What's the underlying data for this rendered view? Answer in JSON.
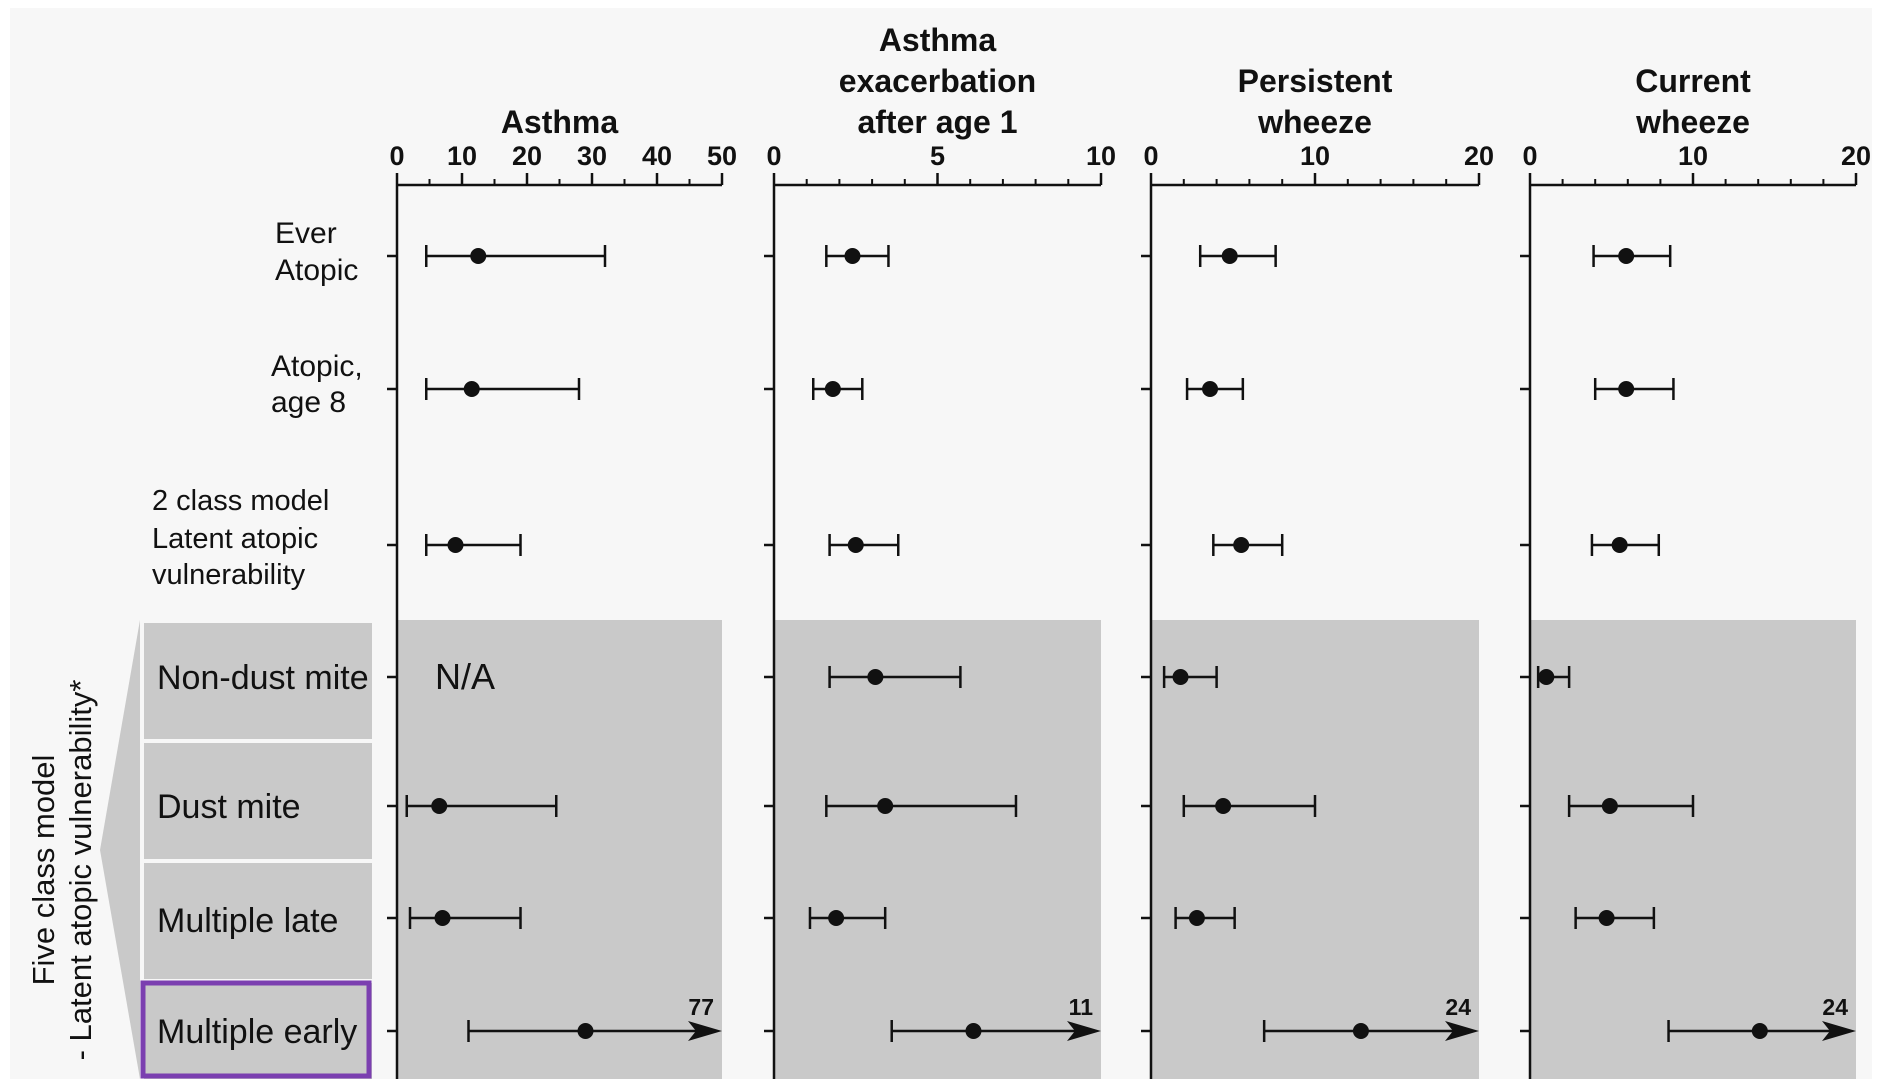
{
  "chart_data": {
    "type": "forest",
    "group_label": [
      "Five class model",
      "- Latent atopic vulnerability*"
    ],
    "rows": [
      {
        "id": "ever-atopic",
        "label_lines": [
          "Ever",
          "Atopic"
        ],
        "shaded": false
      },
      {
        "id": "atopic-age-8",
        "label_lines": [
          "Atopic,",
          "age 8"
        ],
        "shaded": false
      },
      {
        "id": "two-class",
        "label_lines": [
          "2 class model",
          "Latent atopic",
          "vulnerability"
        ],
        "shaded": false
      },
      {
        "id": "non-dust-mite",
        "label_lines": [
          "Non-dust mite"
        ],
        "shaded": true
      },
      {
        "id": "dust-mite",
        "label_lines": [
          "Dust mite"
        ],
        "shaded": true
      },
      {
        "id": "multiple-late",
        "label_lines": [
          "Multiple late"
        ],
        "shaded": true
      },
      {
        "id": "multiple-early",
        "label_lines": [
          "Multiple early"
        ],
        "shaded": true,
        "highlighted": true
      }
    ],
    "panels": [
      {
        "title_lines": [
          "Asthma"
        ],
        "axis_min": 0,
        "axis_max": 50,
        "major_ticks": [
          0,
          10,
          20,
          30,
          40,
          50
        ],
        "minor_ticks": [
          5,
          15,
          25,
          35,
          45
        ],
        "estimates": [
          {
            "est": 12.5,
            "lo": 4.5,
            "hi": 32
          },
          {
            "est": 11.5,
            "lo": 4.5,
            "hi": 28
          },
          {
            "est": 9,
            "lo": 4.5,
            "hi": 19
          },
          {
            "na": true,
            "text": "N/A"
          },
          {
            "est": 6.5,
            "lo": 1.5,
            "hi": 24.5
          },
          {
            "est": 7,
            "lo": 2,
            "hi": 19
          },
          {
            "est": 29,
            "lo": 11,
            "hi": 77,
            "truncated": true,
            "hi_label": "77"
          }
        ]
      },
      {
        "title_lines": [
          "Asthma",
          "exacerbation",
          "after age 1"
        ],
        "axis_min": 0,
        "axis_max": 10,
        "major_ticks": [
          0,
          5,
          10
        ],
        "minor_ticks": [
          1,
          2,
          3,
          4,
          6,
          7,
          8,
          9
        ],
        "estimates": [
          {
            "est": 2.4,
            "lo": 1.6,
            "hi": 3.5
          },
          {
            "est": 1.8,
            "lo": 1.2,
            "hi": 2.7
          },
          {
            "est": 2.5,
            "lo": 1.7,
            "hi": 3.8
          },
          {
            "est": 3.1,
            "lo": 1.7,
            "hi": 5.7
          },
          {
            "est": 3.4,
            "lo": 1.6,
            "hi": 7.4
          },
          {
            "est": 1.9,
            "lo": 1.1,
            "hi": 3.4
          },
          {
            "est": 6.1,
            "lo": 3.6,
            "hi": 11,
            "truncated": true,
            "hi_label": "11"
          }
        ]
      },
      {
        "title_lines": [
          "Persistent",
          "wheeze"
        ],
        "axis_min": 0,
        "axis_max": 20,
        "major_ticks": [
          0,
          10,
          20
        ],
        "minor_ticks": [
          2,
          4,
          6,
          8,
          12,
          14,
          16,
          18
        ],
        "estimates": [
          {
            "est": 4.8,
            "lo": 3,
            "hi": 7.6
          },
          {
            "est": 3.6,
            "lo": 2.2,
            "hi": 5.6
          },
          {
            "est": 5.5,
            "lo": 3.8,
            "hi": 8
          },
          {
            "est": 1.8,
            "lo": 0.8,
            "hi": 4
          },
          {
            "est": 4.4,
            "lo": 2,
            "hi": 10
          },
          {
            "est": 2.8,
            "lo": 1.5,
            "hi": 5.1
          },
          {
            "est": 12.8,
            "lo": 6.9,
            "hi": 24,
            "truncated": true,
            "hi_label": "24"
          }
        ]
      },
      {
        "title_lines": [
          "Current",
          "wheeze"
        ],
        "axis_min": 0,
        "axis_max": 20,
        "major_ticks": [
          0,
          10,
          20
        ],
        "minor_ticks": [
          2,
          4,
          6,
          8,
          12,
          14,
          16,
          18
        ],
        "estimates": [
          {
            "est": 5.9,
            "lo": 3.9,
            "hi": 8.6
          },
          {
            "est": 5.9,
            "lo": 4,
            "hi": 8.8
          },
          {
            "est": 5.5,
            "lo": 3.8,
            "hi": 7.9
          },
          {
            "est": 1,
            "lo": 0.5,
            "hi": 2.4
          },
          {
            "est": 4.9,
            "lo": 2.4,
            "hi": 10
          },
          {
            "est": 4.7,
            "lo": 2.8,
            "hi": 7.6
          },
          {
            "est": 14.1,
            "lo": 8.5,
            "hi": 24,
            "truncated": true,
            "hi_label": "24"
          }
        ]
      }
    ],
    "colors": {
      "background": "#f7f7f7",
      "shade": "#c9c9c9",
      "row_label_box": "#c9c9c9",
      "ink": "#111111",
      "highlight": "#7b3fb0"
    }
  }
}
